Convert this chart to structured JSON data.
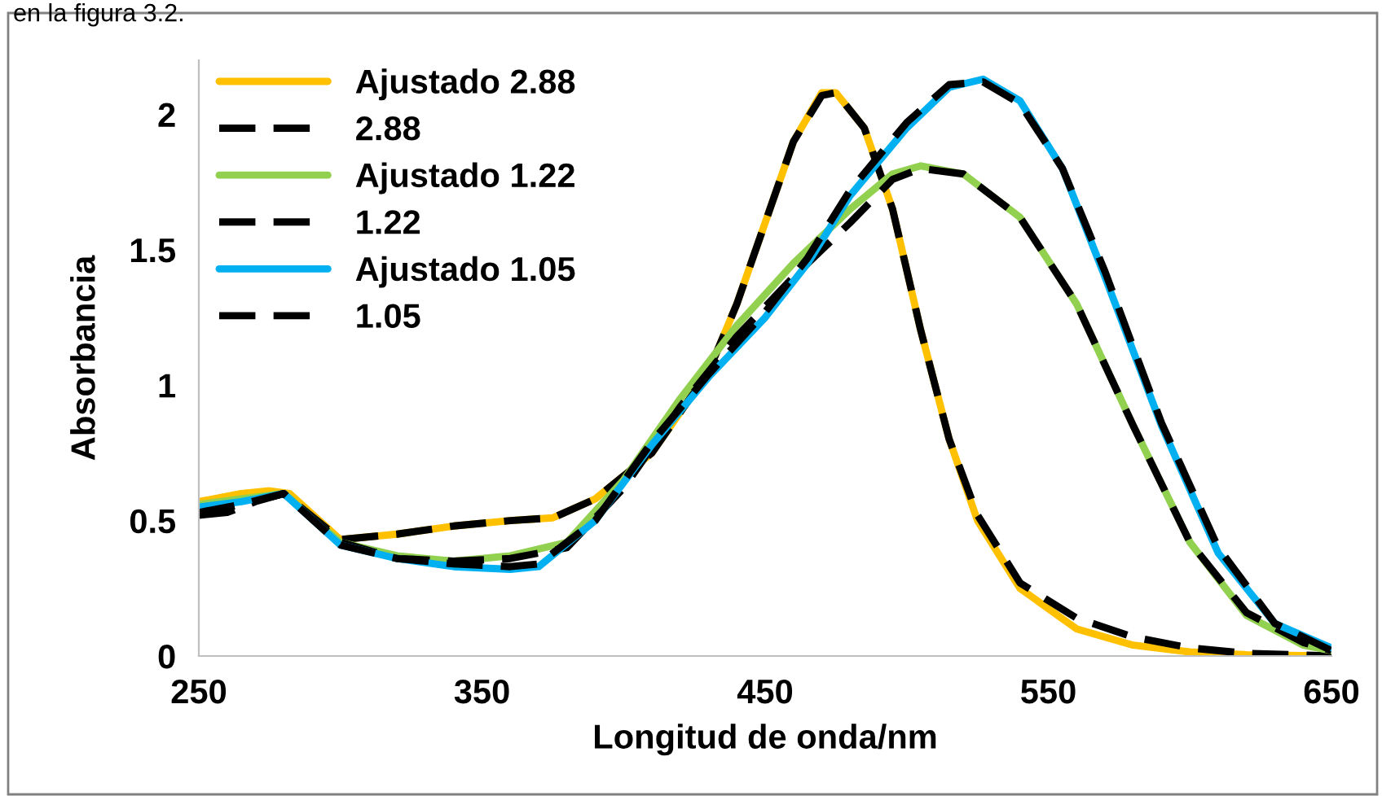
{
  "chart_data": {
    "type": "line",
    "xlabel": "Longitud de onda/nm",
    "ylabel": "Absorbancia",
    "annotations": [
      "en la figura 3.2."
    ],
    "xlim": [
      250,
      650
    ],
    "ylim": [
      0,
      2.2
    ],
    "xticks": [
      250,
      350,
      450,
      550,
      650
    ],
    "yticks": [
      0,
      0.5,
      1,
      1.5,
      2
    ],
    "grid": false,
    "legend": "top left",
    "marker": "none",
    "series": [
      {
        "name": "Ajustado 2.88",
        "color": "#ffc000",
        "line_style": "solid",
        "x": [
          250,
          265,
          275,
          282,
          300,
          320,
          340,
          360,
          375,
          390,
          410,
          430,
          440,
          450,
          460,
          470,
          475,
          485,
          495,
          505,
          515,
          525,
          540,
          560,
          580,
          600,
          620,
          650
        ],
        "values": [
          0.57,
          0.6,
          0.61,
          0.6,
          0.43,
          0.45,
          0.48,
          0.5,
          0.51,
          0.58,
          0.75,
          1.05,
          1.3,
          1.6,
          1.9,
          2.08,
          2.08,
          1.95,
          1.65,
          1.2,
          0.8,
          0.5,
          0.25,
          0.1,
          0.04,
          0.015,
          0.005,
          0
        ]
      },
      {
        "name": "2.88",
        "color": "#000000",
        "line_style": "dashed",
        "x": [
          250,
          260,
          270,
          280,
          300,
          320,
          340,
          360,
          375,
          390,
          410,
          430,
          440,
          450,
          460,
          470,
          475,
          485,
          495,
          505,
          515,
          525,
          540,
          560,
          580,
          600,
          620,
          650
        ],
        "values": [
          0.52,
          0.53,
          0.57,
          0.6,
          0.43,
          0.45,
          0.48,
          0.5,
          0.51,
          0.58,
          0.75,
          1.05,
          1.3,
          1.6,
          1.9,
          2.07,
          2.08,
          1.95,
          1.65,
          1.2,
          0.8,
          0.52,
          0.27,
          0.14,
          0.07,
          0.03,
          0.01,
          0
        ]
      },
      {
        "name": "Ajustado 1.22",
        "color": "#92d050",
        "line_style": "solid",
        "x": [
          250,
          265,
          280,
          300,
          320,
          340,
          360,
          380,
          400,
          420,
          440,
          460,
          480,
          495,
          505,
          520,
          540,
          560,
          580,
          600,
          620,
          640,
          650
        ],
        "values": [
          0.56,
          0.58,
          0.6,
          0.42,
          0.37,
          0.35,
          0.37,
          0.42,
          0.65,
          0.95,
          1.22,
          1.45,
          1.65,
          1.78,
          1.81,
          1.78,
          1.62,
          1.3,
          0.85,
          0.42,
          0.15,
          0.04,
          0.02
        ]
      },
      {
        "name": "1.22",
        "color": "#000000",
        "line_style": "dashed",
        "x": [
          250,
          265,
          280,
          300,
          320,
          340,
          360,
          380,
          400,
          420,
          440,
          460,
          480,
          495,
          505,
          520,
          540,
          560,
          580,
          600,
          620,
          640,
          650
        ],
        "values": [
          0.53,
          0.56,
          0.6,
          0.42,
          0.36,
          0.35,
          0.36,
          0.4,
          0.62,
          0.92,
          1.18,
          1.4,
          1.6,
          1.76,
          1.8,
          1.78,
          1.62,
          1.3,
          0.85,
          0.42,
          0.16,
          0.05,
          0.02
        ]
      },
      {
        "name": "Ajustado 1.05",
        "color": "#00b0f0",
        "line_style": "solid",
        "x": [
          250,
          265,
          280,
          300,
          320,
          340,
          360,
          370,
          390,
          410,
          430,
          450,
          465,
          480,
          500,
          515,
          527,
          540,
          555,
          570,
          590,
          610,
          630,
          650
        ],
        "values": [
          0.55,
          0.57,
          0.6,
          0.41,
          0.36,
          0.33,
          0.32,
          0.33,
          0.5,
          0.78,
          1.03,
          1.25,
          1.45,
          1.7,
          1.95,
          2.1,
          2.13,
          2.05,
          1.8,
          1.4,
          0.85,
          0.38,
          0.12,
          0.03
        ]
      },
      {
        "name": "1.05",
        "color": "#000000",
        "line_style": "dashed",
        "x": [
          250,
          265,
          280,
          300,
          320,
          340,
          360,
          370,
          390,
          410,
          430,
          450,
          465,
          480,
          500,
          515,
          527,
          540,
          555,
          570,
          590,
          610,
          630,
          650
        ],
        "values": [
          0.53,
          0.56,
          0.6,
          0.41,
          0.36,
          0.34,
          0.33,
          0.34,
          0.5,
          0.79,
          1.04,
          1.27,
          1.47,
          1.72,
          1.97,
          2.11,
          2.12,
          2.04,
          1.8,
          1.42,
          0.86,
          0.4,
          0.12,
          0.02
        ]
      }
    ]
  }
}
